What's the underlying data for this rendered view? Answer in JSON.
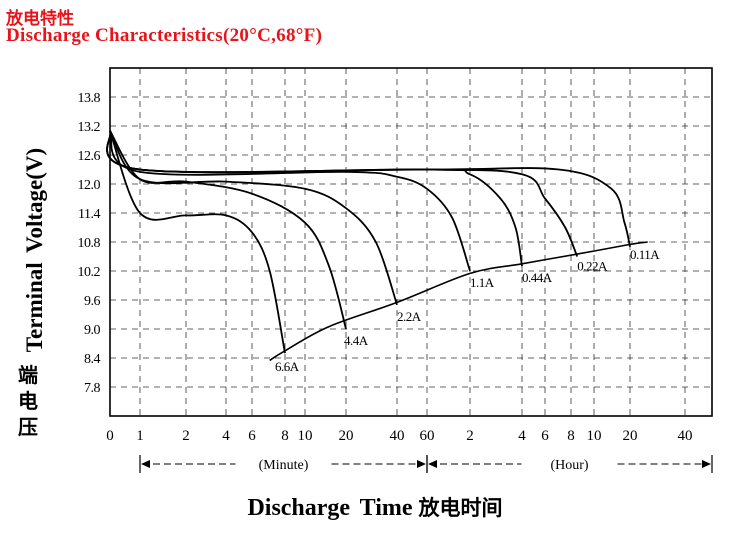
{
  "title_cn": "放电特性",
  "title_en": "Discharge Characteristics(20°C,68°F)",
  "chart_data": {
    "type": "line",
    "ylabel": "Terminal Voltage(V)",
    "ylabel_cn": "端电压",
    "xlabel": "Discharge Time",
    "xlabel_cn": "放电时间",
    "ylim": [
      7.2,
      14.4
    ],
    "yticks": [
      "13.8",
      "13.2",
      "12.6",
      "12.0",
      "11.4",
      "10.8",
      "10.2",
      "9.6",
      "9.0",
      "8.4",
      "7.8"
    ],
    "xticks": [
      "0",
      "1",
      "2",
      "4",
      "6",
      "8",
      "10",
      "20",
      "40",
      "60",
      "2",
      "4",
      "6",
      "8",
      "10",
      "20",
      "40"
    ],
    "x_axis_segments": [
      {
        "label": "(Minute)",
        "range": [
          "0 min",
          "60 min"
        ]
      },
      {
        "label": "(Hour)",
        "range": [
          "1 h",
          "40 h"
        ]
      }
    ],
    "grid": true,
    "series": [
      {
        "name": "6.6A",
        "x": [
          0,
          1,
          2,
          4,
          6,
          7,
          8
        ],
        "y": [
          13.1,
          11.4,
          11.35,
          11.35,
          11.0,
          10.2,
          8.5
        ]
      },
      {
        "name": "4.4A",
        "x": [
          0,
          1,
          2,
          6,
          10,
          15,
          20
        ],
        "y": [
          13.1,
          12.1,
          12.05,
          11.8,
          11.2,
          10.3,
          9.0
        ]
      },
      {
        "name": "2.2A",
        "x": [
          0,
          1,
          4,
          10,
          20,
          30,
          40
        ],
        "y": [
          13.1,
          12.1,
          12.05,
          11.9,
          11.5,
          10.8,
          9.5
        ]
      },
      {
        "name": "1.1A",
        "x": [
          0,
          1,
          20,
          40,
          60,
          90,
          120
        ],
        "y": [
          13.1,
          12.25,
          12.25,
          12.15,
          11.9,
          11.3,
          10.2
        ]
      },
      {
        "name": "0.44A",
        "x": [
          0,
          1,
          60,
          120,
          180,
          220,
          240
        ],
        "y": [
          13.1,
          12.3,
          12.3,
          12.2,
          11.7,
          11.1,
          10.3
        ]
      },
      {
        "name": "0.22A",
        "x": [
          0,
          1,
          60,
          240,
          360,
          450,
          510
        ],
        "y": [
          13.1,
          12.3,
          12.3,
          12.2,
          11.7,
          11.1,
          10.5
        ]
      },
      {
        "name": "0.11A",
        "x": [
          0,
          1,
          60,
          420,
          840,
          1080,
          1200
        ],
        "y": [
          13.1,
          12.3,
          12.3,
          12.3,
          11.9,
          11.2,
          10.7
        ]
      }
    ],
    "end_voltage_line": {
      "x": [
        7,
        8,
        15,
        40,
        120,
        240,
        510,
        1200,
        1500
      ],
      "y": [
        8.35,
        8.55,
        9.05,
        9.55,
        10.15,
        10.35,
        10.55,
        10.75,
        10.8
      ]
    },
    "units": {
      "x": "minutes"
    }
  }
}
